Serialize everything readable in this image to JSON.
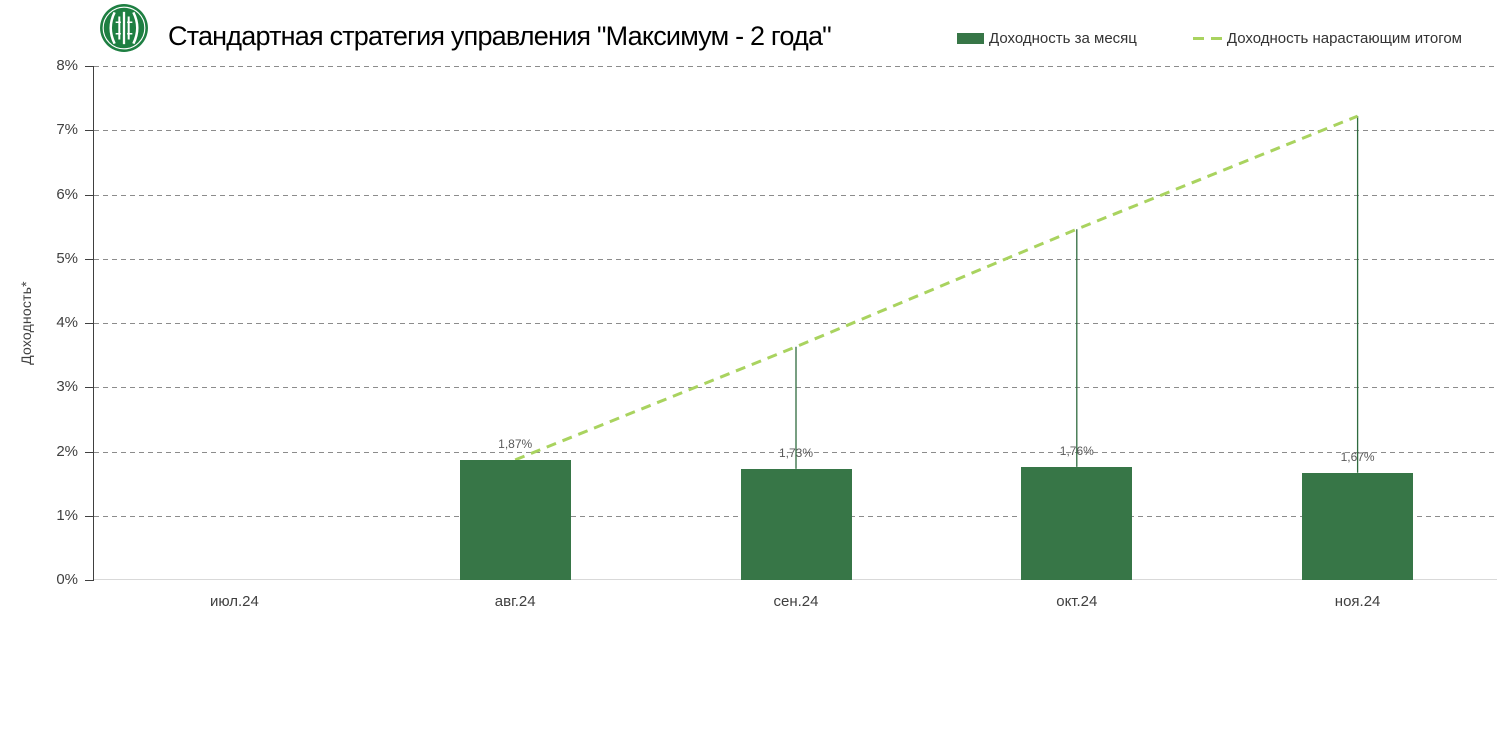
{
  "header": {
    "title": "Стандартная стратегия управления \"Максимум - 2 года\""
  },
  "legend": {
    "items": [
      {
        "label": "Доходность за месяц",
        "swatch": "bar",
        "color": "#377647"
      },
      {
        "label": "Доходность нарастающим итогом",
        "swatch": "dashed-line",
        "color": "#a9d35f"
      }
    ]
  },
  "chart_data": {
    "type": "bar",
    "title": "Стандартная стратегия управления \"Максимум - 2 года\"",
    "categories": [
      "июл.24",
      "авг.24",
      "сен.24",
      "окт.24",
      "ноя.24"
    ],
    "series": [
      {
        "name": "Доходность за месяц",
        "type": "bar",
        "color": "#377647",
        "values": [
          null,
          1.87,
          1.73,
          1.76,
          1.67
        ],
        "data_labels": [
          "",
          "1,87%",
          "1,73%",
          "1,76%",
          "1,67%"
        ]
      },
      {
        "name": "Доходность нарастающим итогом",
        "type": "line",
        "style": "dashed",
        "color": "#a9d35f",
        "connector_color": "#2f6b3f",
        "values": [
          null,
          1.87,
          3.63,
          5.46,
          7.22
        ]
      }
    ],
    "xlabel": "",
    "ylabel": "Доходность*",
    "ylim": [
      0,
      8
    ],
    "yticks": [
      "0%",
      "1%",
      "2%",
      "3%",
      "4%",
      "5%",
      "6%",
      "7%",
      "8%"
    ],
    "grid": "horizontal-dashed",
    "legend_position": "top-right"
  },
  "colors": {
    "bar_green": "#377647",
    "line_green": "#a9d35f",
    "connector_green": "#2f6b3f",
    "logo_green": "#1e7f42",
    "gridline_gray": "#8c8c8c",
    "axis_gray": "#404040",
    "baseline_gray": "#d9d9d9"
  }
}
